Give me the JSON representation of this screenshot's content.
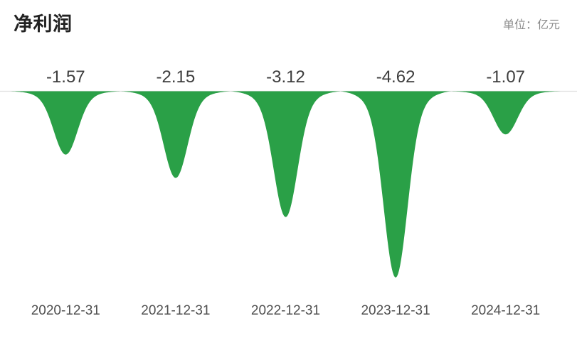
{
  "header": {
    "title": "净利润",
    "unit_label": "单位：亿元"
  },
  "chart_data": {
    "type": "area",
    "title": "净利润",
    "unit": "亿元",
    "categories": [
      "2020-12-31",
      "2021-12-31",
      "2022-12-31",
      "2023-12-31",
      "2024-12-31"
    ],
    "values": [
      -1.57,
      -2.15,
      -3.12,
      -4.62,
      -1.07
    ],
    "series": [
      {
        "name": "净利润",
        "values": [
          -1.57,
          -2.15,
          -3.12,
          -4.62,
          -1.07
        ]
      }
    ],
    "xlabel": "",
    "ylabel": "",
    "ylim": [
      -5,
      0
    ],
    "baseline_value": 0,
    "grid": false,
    "legend": "none",
    "value_labels_position": "above-baseline",
    "colors": {
      "area_fill": "#2aa047",
      "baseline_line": "#dfdfdf",
      "title_text": "#222222",
      "unit_text": "#8a8a8a",
      "value_label_text": "#3d3d3d",
      "axis_label_text": "#4f4f4f",
      "background": "#ffffff"
    }
  }
}
